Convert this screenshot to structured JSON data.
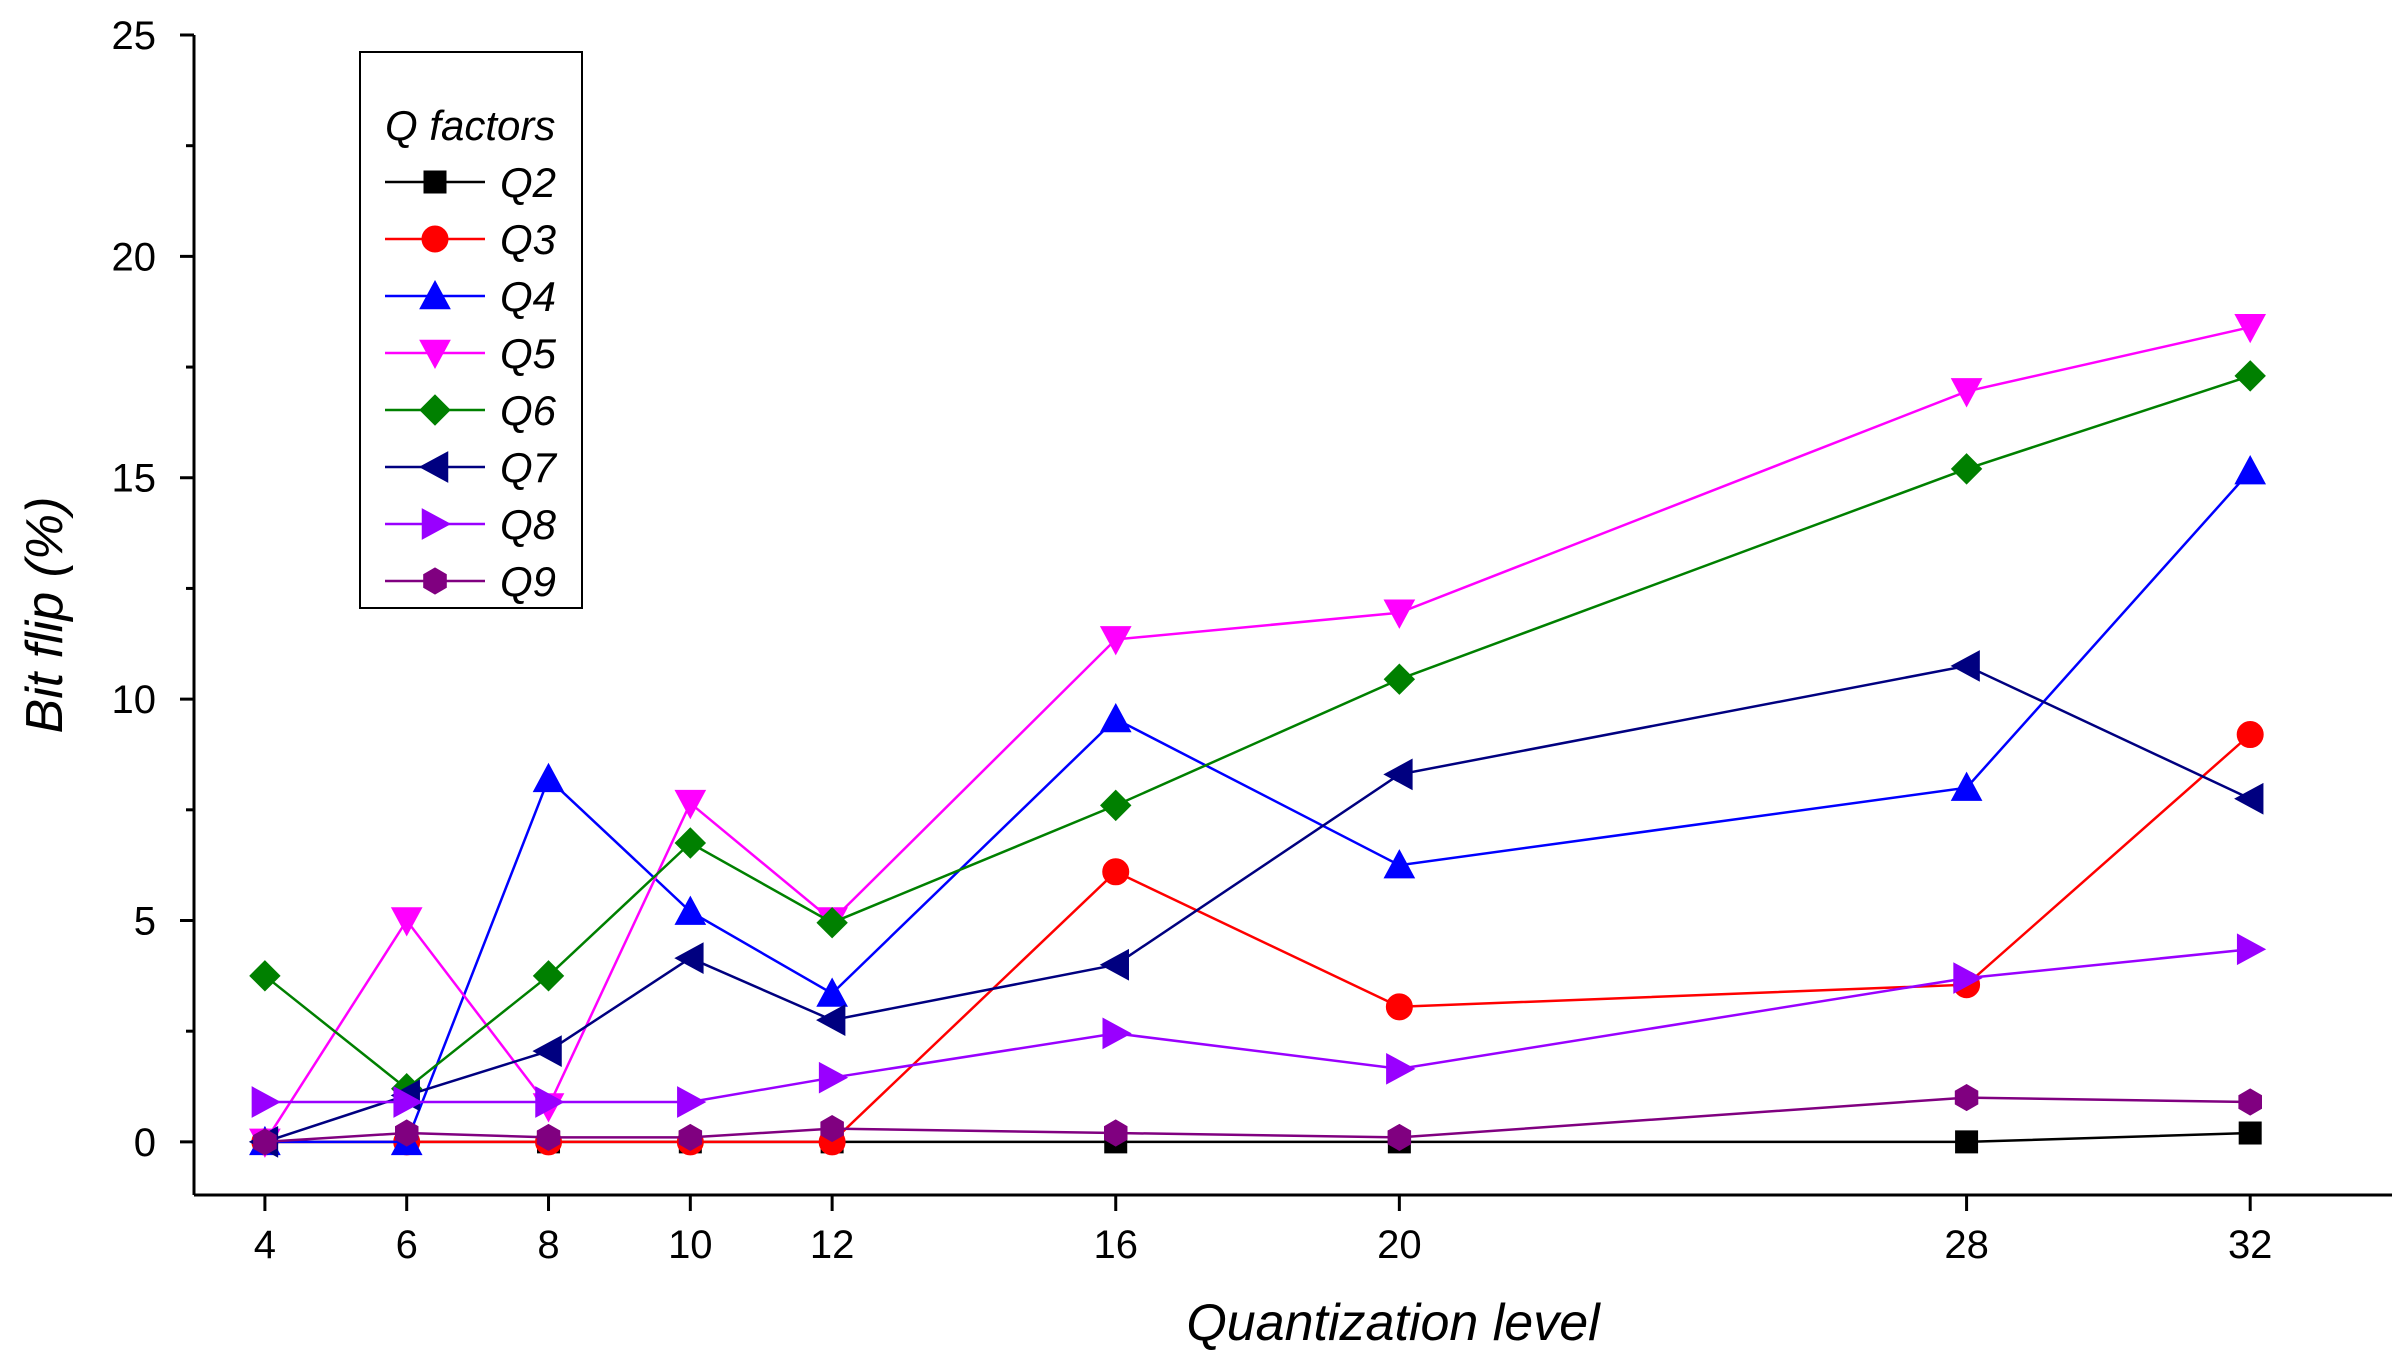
{
  "chart_data": {
    "type": "line",
    "title": "",
    "xlabel": "Quantization level",
    "ylabel": "Bit flip (%)",
    "x": [
      4,
      6,
      8,
      10,
      12,
      16,
      20,
      28,
      32
    ],
    "x_tick_labels": [
      "4",
      "6",
      "8",
      "10",
      "12",
      "16",
      "20",
      "28",
      "32"
    ],
    "xlim": [
      3,
      34
    ],
    "ylim": [
      -1.2,
      25
    ],
    "y_ticks": [
      0,
      5,
      10,
      15,
      20,
      25
    ],
    "y_tick_labels": [
      "0",
      "5",
      "10",
      "15",
      "20",
      "25"
    ],
    "grid": false,
    "legend": {
      "title": "Q factors",
      "position": "top-left"
    },
    "series": [
      {
        "name": "Q2",
        "color": "#000000",
        "marker": "square",
        "values": [
          0,
          0,
          0,
          0,
          0,
          0,
          0,
          0,
          0.2
        ]
      },
      {
        "name": "Q3",
        "color": "#ff0000",
        "marker": "circle",
        "values": [
          0,
          0,
          0,
          0,
          0,
          6.1,
          3.05,
          3.55,
          9.2
        ]
      },
      {
        "name": "Q4",
        "color": "#0000ff",
        "marker": "triangle-up",
        "values": [
          0,
          0,
          8.2,
          5.2,
          3.35,
          9.55,
          6.25,
          8.0,
          15.15
        ]
      },
      {
        "name": "Q5",
        "color": "#ff00ff",
        "marker": "triangle-down",
        "values": [
          0,
          5.0,
          0.8,
          7.65,
          5.0,
          11.35,
          11.95,
          16.95,
          18.4
        ]
      },
      {
        "name": "Q6",
        "color": "#008000",
        "marker": "diamond",
        "values": [
          3.75,
          1.2,
          3.75,
          6.75,
          4.95,
          7.6,
          10.45,
          15.2,
          17.3
        ]
      },
      {
        "name": "Q7",
        "color": "#000080",
        "marker": "triangle-left",
        "values": [
          0,
          1.05,
          2.05,
          4.15,
          2.75,
          4.0,
          8.3,
          10.75,
          7.75
        ]
      },
      {
        "name": "Q8",
        "color": "#9900ff",
        "marker": "triangle-right",
        "values": [
          0.9,
          0.9,
          0.9,
          0.9,
          1.45,
          2.45,
          1.65,
          3.7,
          4.35
        ]
      },
      {
        "name": "Q9",
        "color": "#800080",
        "marker": "hexagon",
        "values": [
          0,
          0.2,
          0.1,
          0.1,
          0.3,
          0.2,
          0.1,
          1.0,
          0.9
        ]
      }
    ]
  }
}
